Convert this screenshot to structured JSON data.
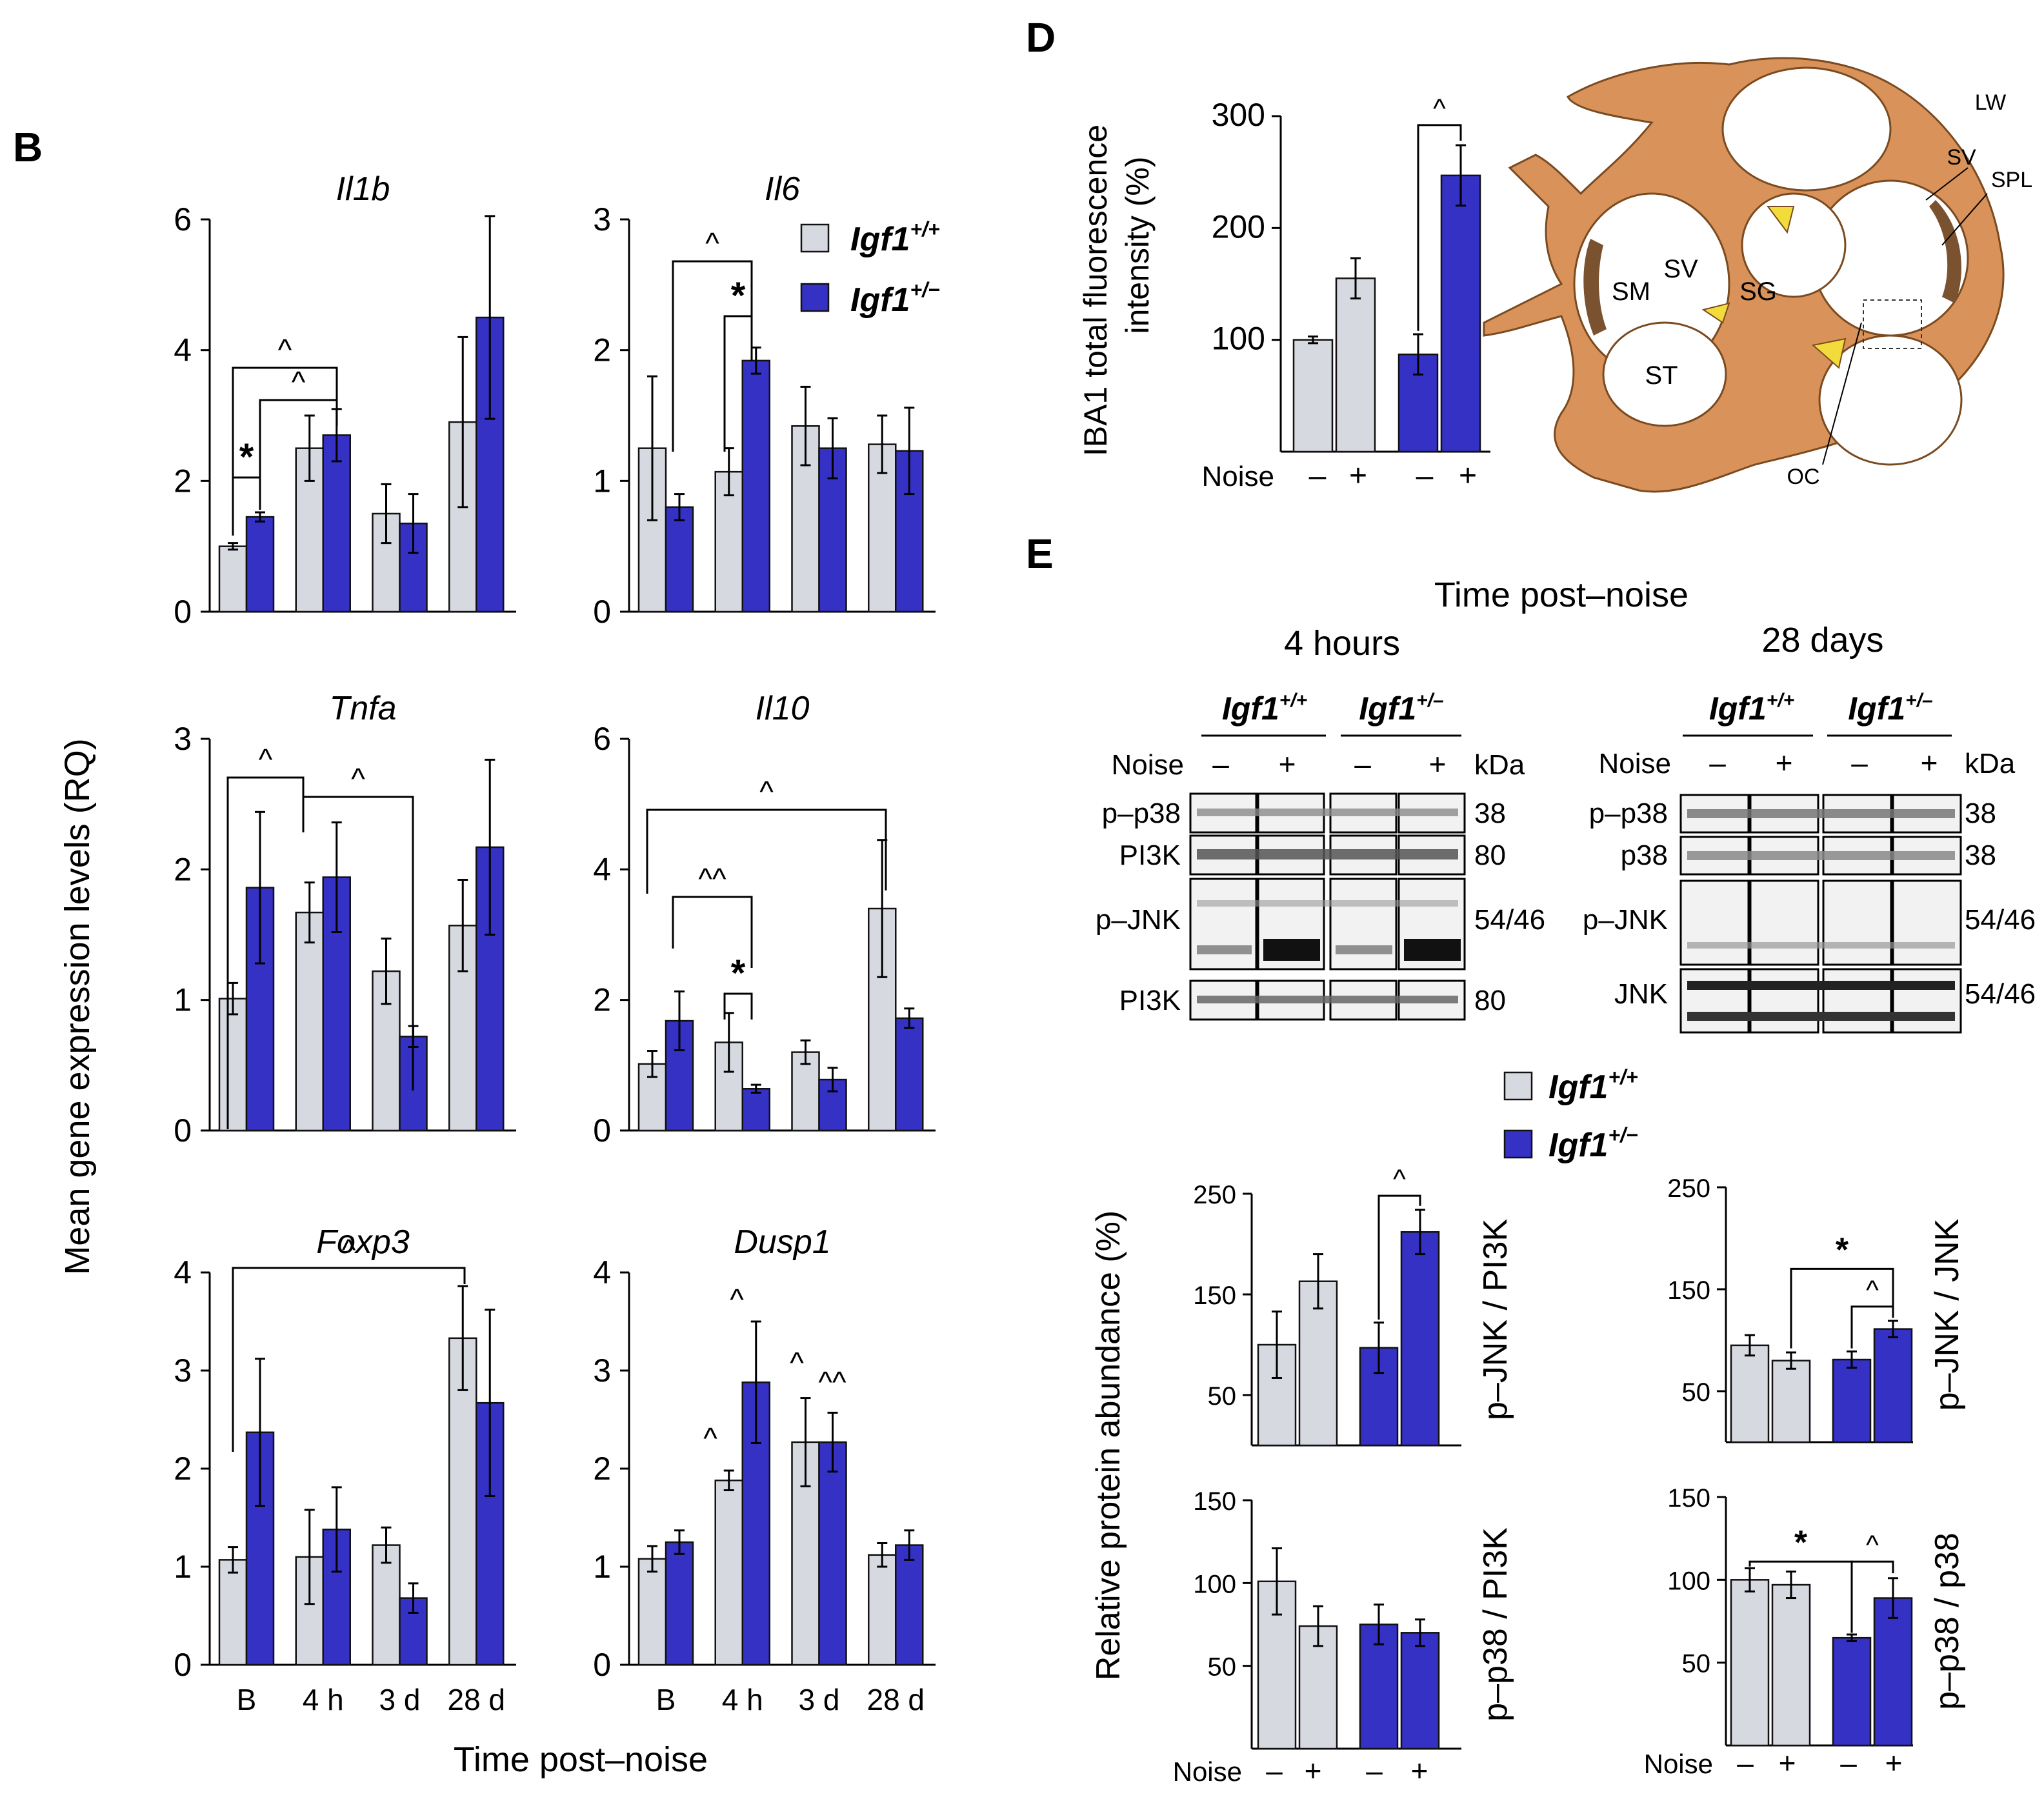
{
  "panel_labels": {
    "b": "B",
    "d": "D",
    "e": "E"
  },
  "colors": {
    "wt": "#d7d9e1",
    "het": "#3431c4",
    "cochlea": "#d9925a",
    "cochlea_dark": "#7a5230",
    "yellow": "#f2dc3c"
  },
  "legend": {
    "wt_label": "Igf1",
    "wt_sup": "+/+",
    "het_label": "Igf1",
    "het_sup": "+/−"
  },
  "panel_b": {
    "ylabel": "Mean gene expression levels (RQ)",
    "xlabel": "Time post–noise",
    "categories": [
      "B",
      "4 h",
      "3 d",
      "28 d"
    ]
  },
  "panel_d": {
    "ylabel_line1": "IBA1 total fluorescence",
    "ylabel_line2": "intensity (%)",
    "noise_label": "Noise",
    "noise_signs": [
      "–",
      "+",
      "–",
      "+"
    ],
    "cochlea_labels": {
      "lw": "LW",
      "sv_top": "SV",
      "spl": "SPL",
      "sm": "SM",
      "sv": "SV",
      "sg": "SG",
      "st": "ST",
      "oc": "OC"
    }
  },
  "panel_e": {
    "title": "Time post–noise",
    "group_4h": "4 hours",
    "group_28d": "28 days",
    "noise_label": "Noise",
    "kda_label": "kDa",
    "signs": [
      "–",
      "+",
      "–",
      "+"
    ],
    "genotype_wt": "Igf1",
    "genotype_wt_sup": "+/+",
    "genotype_het": "Igf1",
    "genotype_het_sup": "+/–",
    "blots_4h": [
      {
        "label": "p–p38",
        "kda": "38"
      },
      {
        "label": "PI3K",
        "kda": "80"
      },
      {
        "label": "p–JNK",
        "kda": "54/46"
      },
      {
        "label": "PI3K",
        "kda": "80"
      }
    ],
    "blots_28d": [
      {
        "label": "p–p38",
        "kda": "38"
      },
      {
        "label": "p38",
        "kda": "38"
      },
      {
        "label": "p–JNK",
        "kda": "54/46"
      },
      {
        "label": "JNK",
        "kda": "54/46"
      }
    ],
    "ylabel": "Relative protein abundance (%)",
    "noise_axis_label": "Noise"
  },
  "chart_data": [
    {
      "type": "bar",
      "id": "il1b",
      "title": "Il1b",
      "categories": [
        "B",
        "4 h",
        "3 d",
        "28 d"
      ],
      "ylim": [
        0,
        6
      ],
      "yticks": [
        "0",
        "2",
        "4",
        "6"
      ],
      "series": [
        {
          "name": "Igf1+/+",
          "values": [
            1.0,
            2.5,
            1.5,
            2.9
          ],
          "err": [
            0.05,
            0.5,
            0.45,
            1.3
          ]
        },
        {
          "name": "Igf1+/−",
          "values": [
            1.45,
            2.7,
            1.35,
            4.5
          ],
          "err": [
            0.07,
            0.4,
            0.45,
            1.55
          ]
        }
      ],
      "annotations": [
        "*",
        "^",
        "^"
      ]
    },
    {
      "type": "bar",
      "id": "il6",
      "title": "Il6",
      "categories": [
        "B",
        "4 h",
        "3 d",
        "28 d"
      ],
      "ylim": [
        0,
        3
      ],
      "yticks": [
        "0",
        "1",
        "2",
        "3"
      ],
      "series": [
        {
          "name": "Igf1+/+",
          "values": [
            1.25,
            1.07,
            1.42,
            1.28
          ],
          "err": [
            0.55,
            0.18,
            0.3,
            0.22
          ]
        },
        {
          "name": "Igf1+/−",
          "values": [
            0.8,
            1.92,
            1.25,
            1.23
          ],
          "err": [
            0.1,
            0.1,
            0.23,
            0.33
          ]
        }
      ],
      "annotations": [
        "^",
        "*"
      ]
    },
    {
      "type": "bar",
      "id": "tnfa",
      "title": "Tnfa",
      "categories": [
        "B",
        "4 h",
        "3 d",
        "28 d"
      ],
      "ylim": [
        0,
        3
      ],
      "yticks": [
        "0",
        "1",
        "2",
        "3"
      ],
      "series": [
        {
          "name": "Igf1+/+",
          "values": [
            1.01,
            1.67,
            1.22,
            1.57
          ],
          "err": [
            0.12,
            0.23,
            0.25,
            0.35
          ]
        },
        {
          "name": "Igf1+/−",
          "values": [
            1.86,
            1.94,
            0.72,
            2.17
          ],
          "err": [
            0.58,
            0.42,
            0.08,
            0.67
          ]
        }
      ],
      "annotations": [
        "^",
        "^"
      ]
    },
    {
      "type": "bar",
      "id": "il10",
      "title": "Il10",
      "categories": [
        "B",
        "4 h",
        "3 d",
        "28 d"
      ],
      "ylim": [
        0,
        6
      ],
      "yticks": [
        "0",
        "2",
        "4",
        "6"
      ],
      "series": [
        {
          "name": "Igf1+/+",
          "values": [
            1.02,
            1.35,
            1.2,
            3.4
          ],
          "err": [
            0.2,
            0.45,
            0.18,
            1.05
          ]
        },
        {
          "name": "Igf1+/−",
          "values": [
            1.68,
            0.64,
            0.78,
            1.72
          ],
          "err": [
            0.45,
            0.06,
            0.18,
            0.15
          ]
        }
      ],
      "annotations": [
        "^",
        "^^",
        "*"
      ]
    },
    {
      "type": "bar",
      "id": "foxp3",
      "title": "Foxp3",
      "categories": [
        "B",
        "4 h",
        "3 d",
        "28 d"
      ],
      "ylim": [
        0,
        4
      ],
      "yticks": [
        "0",
        "1",
        "2",
        "3",
        "4"
      ],
      "series": [
        {
          "name": "Igf1+/+",
          "values": [
            1.07,
            1.1,
            1.22,
            3.33
          ],
          "err": [
            0.13,
            0.48,
            0.18,
            0.53
          ]
        },
        {
          "name": "Igf1+/−",
          "values": [
            2.37,
            1.38,
            0.68,
            2.67
          ],
          "err": [
            0.75,
            0.43,
            0.15,
            0.95
          ]
        }
      ],
      "annotations": [
        "^"
      ]
    },
    {
      "type": "bar",
      "id": "dusp1",
      "title": "Dusp1",
      "categories": [
        "B",
        "4 h",
        "3 d",
        "28 d"
      ],
      "ylim": [
        0,
        4
      ],
      "yticks": [
        "0",
        "1",
        "2",
        "3",
        "4"
      ],
      "series": [
        {
          "name": "Igf1+/+",
          "values": [
            1.08,
            1.88,
            2.27,
            1.12
          ],
          "err": [
            0.13,
            0.1,
            0.45,
            0.12
          ]
        },
        {
          "name": "Igf1+/−",
          "values": [
            1.25,
            2.88,
            2.27,
            1.22
          ],
          "err": [
            0.12,
            0.62,
            0.3,
            0.15
          ]
        }
      ],
      "annotations": [
        "^",
        "^",
        "^",
        "^^"
      ]
    },
    {
      "type": "bar",
      "id": "iba1",
      "title": "IBA1 total fluorescence intensity (%)",
      "categories": [
        "Igf1+/+ –",
        "Igf1+/+ +",
        "Igf1+/– –",
        "Igf1+/– +"
      ],
      "ylim": [
        0,
        300
      ],
      "yticks": [
        "100",
        "200",
        "300"
      ],
      "values": [
        100,
        155,
        87,
        247
      ],
      "err": [
        3,
        18,
        18,
        27
      ],
      "groups": [
        "wt",
        "wt",
        "het",
        "het"
      ],
      "annotations": [
        "^"
      ]
    },
    {
      "type": "bar",
      "id": "pjnk_pi3k_4h",
      "title": "p–JNK / PI3K",
      "categories": [
        "Igf1+/+ –",
        "Igf1+/+ +",
        "Igf1+/– –",
        "Igf1+/– +"
      ],
      "ylim": [
        0,
        250
      ],
      "yticks": [
        "50",
        "150",
        "250"
      ],
      "values": [
        100,
        163,
        97,
        212
      ],
      "err": [
        33,
        27,
        25,
        22
      ],
      "groups": [
        "wt",
        "wt",
        "het",
        "het"
      ],
      "annotations": [
        "^"
      ]
    },
    {
      "type": "bar",
      "id": "pp38_pi3k_4h",
      "title": "p–p38 / PI3K",
      "categories": [
        "Igf1+/+ –",
        "Igf1+/+ +",
        "Igf1+/– –",
        "Igf1+/– +"
      ],
      "ylim": [
        0,
        150
      ],
      "yticks": [
        "50",
        "100",
        "150"
      ],
      "values": [
        101,
        74,
        75,
        70
      ],
      "err": [
        20,
        12,
        12,
        8
      ],
      "groups": [
        "wt",
        "wt",
        "het",
        "het"
      ]
    },
    {
      "type": "bar",
      "id": "pjnk_jnk_28d",
      "title": "p–JNK / JNK",
      "categories": [
        "Igf1+/+ –",
        "Igf1+/+ +",
        "Igf1+/– –",
        "Igf1+/– +"
      ],
      "ylim": [
        0,
        250
      ],
      "yticks": [
        "50",
        "150",
        "250"
      ],
      "values": [
        95,
        80,
        81,
        111
      ],
      "err": [
        10,
        8,
        8,
        8
      ],
      "groups": [
        "wt",
        "wt",
        "het",
        "het"
      ],
      "annotations": [
        "*",
        "^"
      ]
    },
    {
      "type": "bar",
      "id": "pp38_p38_28d",
      "title": "p–p38 / p38",
      "categories": [
        "Igf1+/+ –",
        "Igf1+/+ +",
        "Igf1+/– –",
        "Igf1+/– +"
      ],
      "ylim": [
        0,
        150
      ],
      "yticks": [
        "50",
        "100",
        "150"
      ],
      "values": [
        100,
        97,
        65,
        89
      ],
      "err": [
        7,
        8,
        2,
        12
      ],
      "groups": [
        "wt",
        "wt",
        "het",
        "het"
      ],
      "annotations": [
        "*",
        "^"
      ]
    }
  ]
}
